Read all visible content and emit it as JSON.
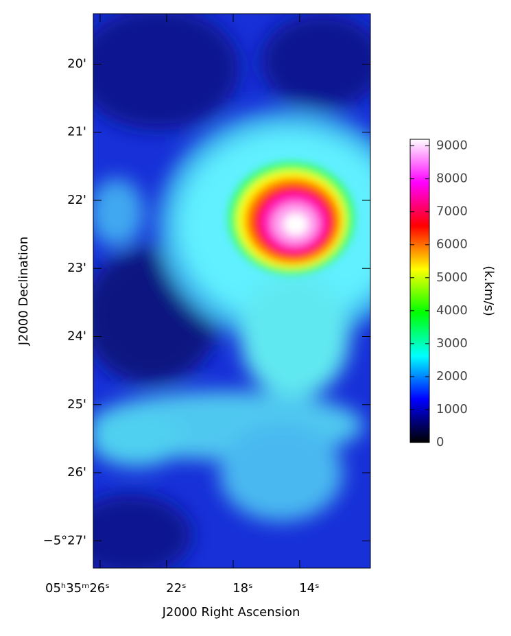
{
  "chart_data": {
    "type": "image",
    "x_label": "J2000 Right Ascension",
    "y_label": "J2000 Declination",
    "xlim": [
      26.41,
      9.75
    ],
    "xticks": [
      {
        "value": 26,
        "label": "05ʰ35ᵐ26ˢ"
      },
      {
        "value": 22,
        "label": "22ˢ"
      },
      {
        "value": 18,
        "label": "18ˢ"
      },
      {
        "value": 14,
        "label": "14ˢ"
      }
    ],
    "ylim": [
      19.26,
      27.4
    ],
    "yticks": [
      {
        "value": 20,
        "label": "20'"
      },
      {
        "value": 21,
        "label": "21'"
      },
      {
        "value": 22,
        "label": "22'"
      },
      {
        "value": 23,
        "label": "23'"
      },
      {
        "value": 24,
        "label": "24'"
      },
      {
        "value": 25,
        "label": "25'"
      },
      {
        "value": 26,
        "label": "26'"
      },
      {
        "value": 27,
        "label": "−5°27'"
      }
    ],
    "colorbar": {
      "label": "(k.km/s)",
      "lim": [
        0,
        9200
      ],
      "ticks": [
        0,
        1000,
        2000,
        3000,
        4000,
        5000,
        6000,
        7000,
        8000,
        9000
      ],
      "colormap": [
        "#000000",
        "#0000ff",
        "#00ffff",
        "#00ff00",
        "#ffff00",
        "#ff0000",
        "#ff00ff",
        "#ffffff"
      ]
    }
  }
}
